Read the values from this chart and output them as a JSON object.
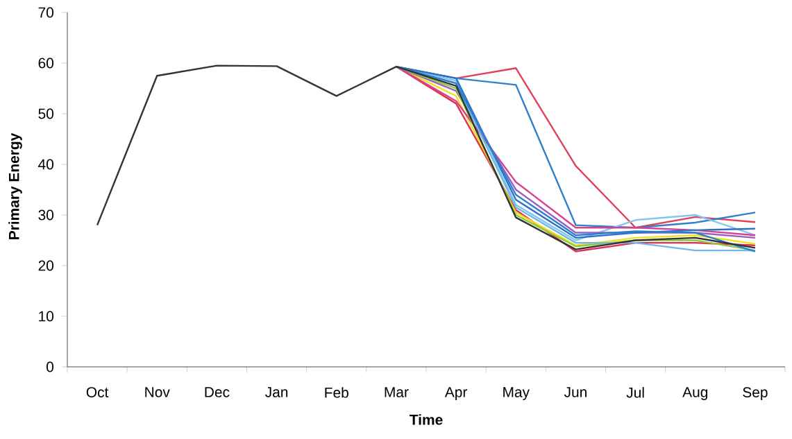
{
  "chart_data": {
    "type": "line",
    "xlabel": "Time",
    "ylabel": "Primary Energy",
    "categories": [
      "Oct",
      "Nov",
      "Dec",
      "Jan",
      "Feb",
      "Mar",
      "Apr",
      "May",
      "Jun",
      "Jul",
      "Aug",
      "Sep"
    ],
    "ylim": [
      0,
      70
    ],
    "yticks": [
      0,
      10,
      20,
      30,
      40,
      50,
      60,
      70
    ],
    "marker": "none",
    "line_style": "solid",
    "series": [
      {
        "color": "#e0405a",
        "values": [
          null,
          null,
          null,
          null,
          null,
          59.3,
          57,
          59,
          39.7,
          27.5,
          29.6,
          28.6
        ]
      },
      {
        "color": "#2f7fcf",
        "values": [
          null,
          null,
          null,
          null,
          null,
          59.3,
          57,
          55.7,
          28,
          27.5,
          28.5,
          30.5
        ]
      },
      {
        "color": "#e03050",
        "values": [
          null,
          null,
          null,
          null,
          null,
          59.3,
          52,
          31,
          22.8,
          24.5,
          24.5,
          24
        ]
      },
      {
        "color": "#f0e020",
        "values": [
          null,
          null,
          null,
          null,
          null,
          59.3,
          53.5,
          30.5,
          24,
          25.5,
          26,
          24.3
        ]
      },
      {
        "color": "#80c8ec",
        "values": [
          null,
          null,
          null,
          null,
          null,
          59.3,
          56.5,
          32,
          25,
          29,
          30,
          26
        ]
      },
      {
        "color": "#d84090",
        "values": [
          null,
          null,
          null,
          null,
          null,
          59.3,
          52.5,
          36.5,
          27.5,
          27.5,
          27,
          26
        ]
      },
      {
        "color": "#9a60c0",
        "values": [
          null,
          null,
          null,
          null,
          null,
          59.3,
          54.5,
          35,
          26.5,
          26.5,
          26.5,
          25.5
        ]
      },
      {
        "color": "#90c840",
        "values": [
          null,
          null,
          null,
          null,
          null,
          59.3,
          55,
          30,
          23.8,
          25,
          25,
          23
        ]
      },
      {
        "color": "#70b8e8",
        "values": [
          null,
          null,
          null,
          null,
          null,
          59.3,
          56,
          31.5,
          24.5,
          24.5,
          23,
          23
        ]
      },
      {
        "color": "#3070c8",
        "values": [
          null,
          null,
          null,
          null,
          null,
          59.3,
          57,
          33,
          25.5,
          26.5,
          27,
          27.3
        ]
      },
      {
        "color": "#2a80d0",
        "values": [
          null,
          null,
          null,
          null,
          null,
          59.3,
          56,
          34,
          26,
          26.8,
          26.5,
          22.8
        ]
      },
      {
        "color": "#333333",
        "values": [
          28,
          57.5,
          59.5,
          59.4,
          53.5,
          59.3,
          55.5,
          29.5,
          23.2,
          25,
          25.5,
          23.5
        ]
      }
    ]
  }
}
